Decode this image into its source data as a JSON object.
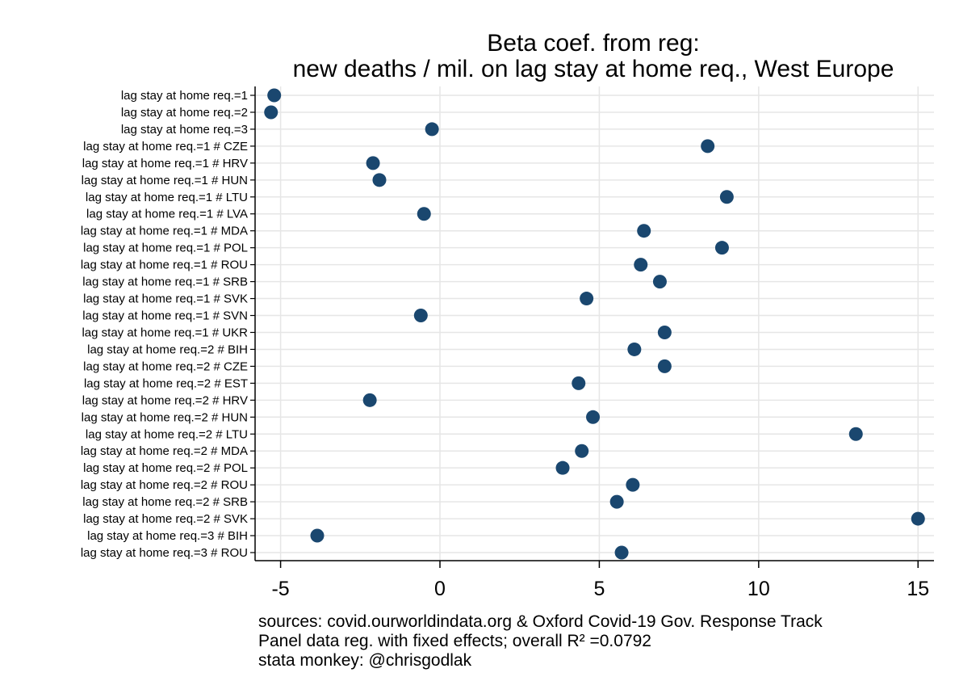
{
  "chart_data": {
    "type": "scatter",
    "title_lines": [
      "Beta coef. from reg:",
      "new deaths / mil. on lag stay at home req., West Europe"
    ],
    "xlabel": "",
    "ylabel": "",
    "xlim": [
      -5.8,
      15.5
    ],
    "xticks": [
      -5,
      0,
      5,
      10,
      15
    ],
    "xtick_labels": [
      "-5",
      "0",
      "5",
      "10",
      "15"
    ],
    "grid": true,
    "marker_color": "#1a476f",
    "categories": [
      "lag stay at home req.=1",
      "lag stay at home req.=2",
      "lag stay at home req.=3",
      "lag stay at home req.=1 # CZE",
      "lag stay at home req.=1 # HRV",
      "lag stay at home req.=1 # HUN",
      "lag stay at home req.=1 # LTU",
      "lag stay at home req.=1 # LVA",
      "lag stay at home req.=1 # MDA",
      "lag stay at home req.=1 # POL",
      "lag stay at home req.=1 # ROU",
      "lag stay at home req.=1 # SRB",
      "lag stay at home req.=1 # SVK",
      "lag stay at home req.=1 # SVN",
      "lag stay at home req.=1 # UKR",
      "lag stay at home req.=2 # BIH",
      "lag stay at home req.=2 # CZE",
      "lag stay at home req.=2 # EST",
      "lag stay at home req.=2 # HRV",
      "lag stay at home req.=2 # HUN",
      "lag stay at home req.=2 # LTU",
      "lag stay at home req.=2 # MDA",
      "lag stay at home req.=2 # POL",
      "lag stay at home req.=2 # ROU",
      "lag stay at home req.=2 # SRB",
      "lag stay at home req.=2 # SVK",
      "lag stay at home req.=3 # BIH",
      "lag stay at home req.=3 # ROU"
    ],
    "values": [
      -5.2,
      -5.3,
      -0.25,
      8.4,
      -2.1,
      -1.9,
      9.0,
      -0.5,
      6.4,
      8.85,
      6.3,
      6.9,
      4.6,
      -0.6,
      7.05,
      6.1,
      7.05,
      4.35,
      -2.2,
      4.8,
      13.05,
      4.45,
      3.85,
      6.05,
      5.55,
      15.0,
      -3.85,
      5.7
    ],
    "notes": [
      "sources: covid.ourworldindata.org & Oxford Covid-19 Gov. Response Track",
      "Panel data reg. with fixed effects; overall R² =0.0792",
      "stata monkey: @chrisgodlak"
    ]
  }
}
